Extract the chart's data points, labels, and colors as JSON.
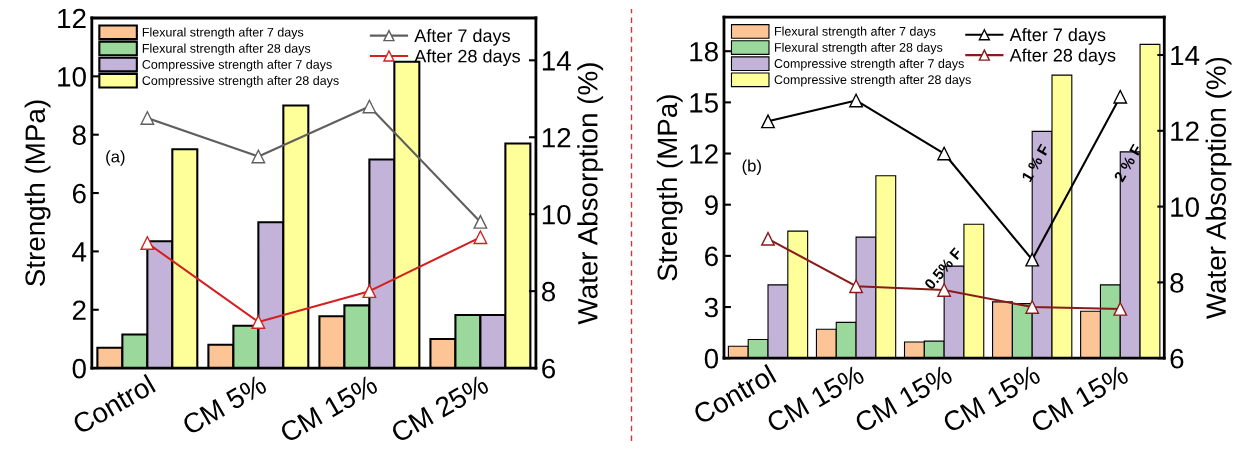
{
  "chart_data": [
    {
      "type": "bar",
      "categories": [
        "Control",
        "CM 5%",
        "CM 15%",
        "CM 25%"
      ],
      "ylabel": "Strength (MPa)",
      "y2label": "Water Absorption (%)",
      "ylim": [
        0,
        12
      ],
      "yticks": [
        0,
        2,
        4,
        6,
        8,
        10,
        12
      ],
      "y2lim": [
        6,
        15.1
      ],
      "y2ticks": [
        6,
        8,
        10,
        12,
        14
      ],
      "legend": "top",
      "annotations": [
        "(a)"
      ],
      "series": [
        {
          "name": "Flexural strength after 7 days",
          "color": "#fdc596",
          "values": [
            0.7,
            0.8,
            1.78,
            1.0
          ]
        },
        {
          "name": "Flexural strength after 28 days",
          "color": "#9bd89b",
          "values": [
            1.15,
            1.45,
            2.15,
            1.82
          ]
        },
        {
          "name": "Compressive strength after 7 days",
          "color": "#c3b3d9",
          "values": [
            4.35,
            5.0,
            7.15,
            1.82
          ]
        },
        {
          "name": "Compressive strength after 28 days",
          "color": "#ffff99",
          "values": [
            7.5,
            9.0,
            10.5,
            7.7
          ]
        },
        {
          "name": "After 7 days",
          "type": "line",
          "axis": "y2",
          "marker": "triangle",
          "color": "#5f5f5f",
          "values": [
            12.5,
            11.5,
            12.8,
            9.8
          ]
        },
        {
          "name": "After 28 days",
          "type": "line",
          "axis": "y2",
          "marker": "triangle",
          "color": "#d42020",
          "values": [
            9.25,
            7.2,
            8.0,
            9.4
          ]
        }
      ]
    },
    {
      "type": "bar",
      "categories": [
        "Control",
        "CM 15%",
        "CM 15%",
        "CM 15%",
        "CM 15%"
      ],
      "ylabel": "Strength (MPa)",
      "y2label": "Water Absorption (%)",
      "ylim": [
        0,
        20
      ],
      "yticks": [
        0,
        3,
        6,
        9,
        12,
        15,
        18
      ],
      "y2lim": [
        6,
        15
      ],
      "y2ticks": [
        6,
        8,
        10,
        12,
        14
      ],
      "legend": "top",
      "annotations": [
        "(b)",
        "0.5% F",
        "1 % F",
        "2 % F"
      ],
      "series": [
        {
          "name": "Flexural strength after 7 days",
          "color": "#fdc596",
          "values": [
            0.7,
            1.7,
            0.95,
            3.3,
            2.75
          ]
        },
        {
          "name": "Flexural strength after 28 days",
          "color": "#9bd89b",
          "values": [
            1.1,
            2.1,
            1.0,
            3.2,
            4.3
          ]
        },
        {
          "name": "Compressive strength after 7 days",
          "color": "#c3b3d9",
          "values": [
            4.3,
            7.1,
            5.4,
            13.3,
            12.1
          ]
        },
        {
          "name": "Compressive strength after 28 days",
          "color": "#ffff99",
          "values": [
            7.45,
            10.7,
            7.85,
            16.6,
            18.4
          ]
        },
        {
          "name": "After 7 days",
          "type": "line",
          "axis": "y2",
          "marker": "triangle",
          "color": "#000000",
          "values": [
            12.25,
            12.8,
            11.4,
            8.6,
            12.9
          ]
        },
        {
          "name": "After 28 days",
          "type": "line",
          "axis": "y2",
          "marker": "triangle",
          "color": "#8b1a1a",
          "values": [
            9.15,
            7.9,
            7.8,
            7.35,
            7.3
          ]
        }
      ]
    }
  ]
}
